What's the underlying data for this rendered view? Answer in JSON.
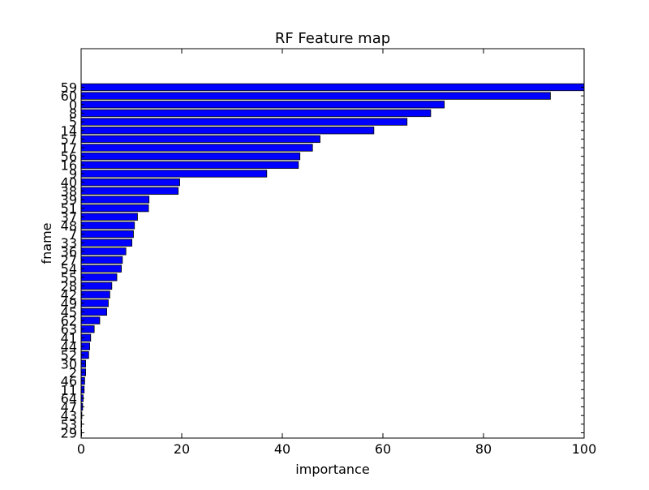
{
  "chart_data": {
    "type": "bar",
    "orientation": "horizontal",
    "title": "RF Feature map",
    "xlabel": "importance",
    "ylabel": "fname",
    "xlim": [
      0,
      100
    ],
    "xticks": [
      0,
      20,
      40,
      60,
      80,
      100
    ],
    "grid": false,
    "bar_color": "#0000ff",
    "categories": [
      "59",
      "60",
      "0",
      "8",
      "5",
      "14",
      "57",
      "17",
      "56",
      "16",
      "9",
      "40",
      "38",
      "39",
      "51",
      "37",
      "48",
      "7",
      "33",
      "36",
      "27",
      "54",
      "55",
      "28",
      "42",
      "49",
      "45",
      "62",
      "63",
      "41",
      "44",
      "52",
      "30",
      "2",
      "46",
      "11",
      "64",
      "47",
      "43",
      "53",
      "29"
    ],
    "values": [
      100,
      93.3,
      72.2,
      69.5,
      64.8,
      58.2,
      47.5,
      46.0,
      43.5,
      43.2,
      36.9,
      19.6,
      19.3,
      13.5,
      13.4,
      11.2,
      10.6,
      10.4,
      10.1,
      8.9,
      8.2,
      8.0,
      7.1,
      6.1,
      5.7,
      5.4,
      5.1,
      3.7,
      2.6,
      1.9,
      1.7,
      1.5,
      0.9,
      0.9,
      0.7,
      0.6,
      0.4,
      0.3,
      0.15,
      0.1,
      0.05
    ]
  }
}
